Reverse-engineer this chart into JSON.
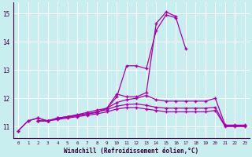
{
  "xlabel": "Windchill (Refroidissement éolien,°C)",
  "bg_color": "#c8eef0",
  "grid_color": "#ffffff",
  "line_color": "#aa00aa",
  "xlim": [
    -0.5,
    23.5
  ],
  "ylim": [
    10.6,
    15.4
  ],
  "yticks": [
    11,
    12,
    13,
    14,
    15
  ],
  "xticks": [
    0,
    1,
    2,
    3,
    4,
    5,
    6,
    7,
    8,
    9,
    10,
    11,
    12,
    13,
    14,
    15,
    16,
    17,
    18,
    19,
    20,
    21,
    22,
    23
  ],
  "series": [
    [
      10.85,
      11.2,
      11.3,
      11.2,
      11.3,
      11.35,
      11.4,
      11.45,
      11.5,
      11.65,
      12.05,
      13.15,
      13.15,
      13.05,
      14.4,
      14.95,
      14.85,
      13.75,
      null,
      null,
      null,
      null,
      null,
      null
    ],
    [
      10.85,
      11.2,
      11.3,
      11.2,
      11.3,
      11.35,
      11.4,
      11.45,
      11.5,
      11.65,
      12.15,
      12.05,
      12.05,
      12.2,
      14.65,
      15.05,
      14.9,
      null,
      null,
      null,
      null,
      null,
      null,
      null
    ],
    [
      null,
      null,
      11.2,
      11.2,
      11.28,
      11.35,
      11.42,
      11.5,
      11.58,
      11.65,
      11.85,
      11.95,
      12.0,
      12.1,
      11.95,
      11.9,
      11.9,
      11.9,
      11.9,
      11.9,
      12.0,
      11.05,
      11.05,
      11.05
    ],
    [
      null,
      null,
      11.2,
      11.2,
      11.28,
      11.33,
      11.38,
      11.45,
      11.52,
      11.6,
      11.72,
      11.78,
      11.8,
      11.75,
      11.68,
      11.65,
      11.65,
      11.65,
      11.65,
      11.65,
      11.68,
      11.02,
      11.02,
      11.02
    ],
    [
      null,
      null,
      11.2,
      11.2,
      11.25,
      11.3,
      11.35,
      11.4,
      11.45,
      11.52,
      11.62,
      11.67,
      11.67,
      11.62,
      11.57,
      11.52,
      11.52,
      11.52,
      11.52,
      11.52,
      11.57,
      11.0,
      11.0,
      11.0
    ]
  ]
}
